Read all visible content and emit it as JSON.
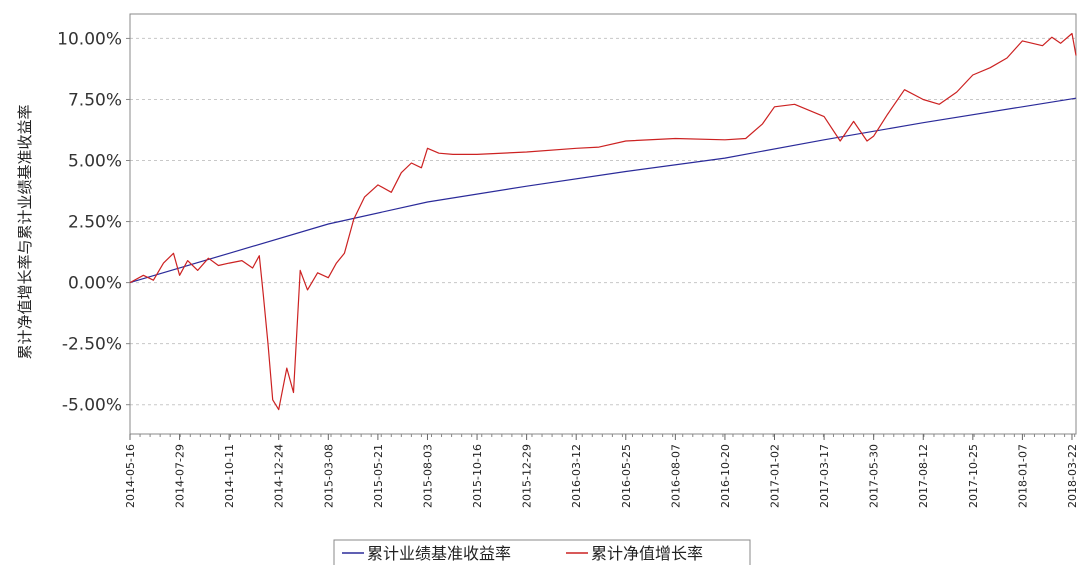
{
  "chart_data": {
    "type": "line",
    "title": "",
    "xlabel": "",
    "ylabel": "累计净值增长率与累计业绩基准收益率",
    "x_ticks": [
      "2014-05-16",
      "2014-07-29",
      "2014-10-11",
      "2014-12-24",
      "2015-03-08",
      "2015-05-21",
      "2015-08-03",
      "2015-10-16",
      "2015-12-29",
      "2016-03-12",
      "2016-05-25",
      "2016-08-07",
      "2016-10-20",
      "2017-01-02",
      "2017-03-17",
      "2017-05-30",
      "2017-08-12",
      "2017-10-25",
      "2018-01-07",
      "2018-03-22"
    ],
    "y_ticks": [
      "-5.00%",
      "-2.50%",
      "0.00%",
      "2.50%",
      "5.00%",
      "7.50%",
      "10.00%"
    ],
    "ylim": [
      -6.2,
      11.0
    ],
    "x_range": [
      "2014-05-16",
      "2018-03-28"
    ],
    "grid": true,
    "legend_position": "bottom-center",
    "series": [
      {
        "name": "累计业绩基准收益率",
        "color": "#2b2b9a",
        "x": [
          "2014-05-16",
          "2014-10-11",
          "2015-03-08",
          "2015-08-03",
          "2015-12-29",
          "2016-05-25",
          "2016-10-20",
          "2017-03-17",
          "2017-08-12",
          "2018-01-07",
          "2018-03-28"
        ],
        "values": [
          0.0,
          1.2,
          2.4,
          3.3,
          3.95,
          4.55,
          5.1,
          5.85,
          6.55,
          7.2,
          7.55
        ]
      },
      {
        "name": "累计净值增长率",
        "color": "#cc2222",
        "x": [
          "2014-05-16",
          "2014-06-05",
          "2014-06-20",
          "2014-07-05",
          "2014-07-20",
          "2014-07-29",
          "2014-08-10",
          "2014-08-25",
          "2014-09-10",
          "2014-09-25",
          "2014-10-11",
          "2014-10-30",
          "2014-11-15",
          "2014-11-25",
          "2014-12-01",
          "2014-12-08",
          "2014-12-15",
          "2014-12-24",
          "2015-01-05",
          "2015-01-15",
          "2015-01-25",
          "2015-02-05",
          "2015-02-20",
          "2015-03-08",
          "2015-03-20",
          "2015-04-01",
          "2015-04-15",
          "2015-05-01",
          "2015-05-21",
          "2015-06-10",
          "2015-06-25",
          "2015-07-10",
          "2015-07-25",
          "2015-08-03",
          "2015-08-20",
          "2015-09-10",
          "2015-10-16",
          "2015-12-29",
          "2016-03-12",
          "2016-04-15",
          "2016-05-25",
          "2016-08-07",
          "2016-10-20",
          "2016-11-20",
          "2016-12-15",
          "2017-01-02",
          "2017-02-01",
          "2017-03-17",
          "2017-04-10",
          "2017-04-30",
          "2017-05-20",
          "2017-05-30",
          "2017-06-20",
          "2017-07-15",
          "2017-08-12",
          "2017-09-05",
          "2017-10-01",
          "2017-10-25",
          "2017-11-20",
          "2017-12-15",
          "2018-01-07",
          "2018-02-06",
          "2018-02-20",
          "2018-03-05",
          "2018-03-22",
          "2018-03-28"
        ],
        "values": [
          0.0,
          0.3,
          0.1,
          0.8,
          1.2,
          0.3,
          0.9,
          0.5,
          1.0,
          0.7,
          0.8,
          0.9,
          0.6,
          1.1,
          -0.5,
          -2.5,
          -4.8,
          -5.2,
          -3.5,
          -4.5,
          0.5,
          -0.3,
          0.4,
          0.2,
          0.8,
          1.2,
          2.6,
          3.5,
          4.0,
          3.7,
          4.5,
          4.9,
          4.7,
          5.5,
          5.3,
          5.25,
          5.25,
          5.35,
          5.5,
          5.55,
          5.8,
          5.9,
          5.85,
          5.9,
          6.5,
          7.2,
          7.3,
          6.8,
          5.8,
          6.6,
          5.8,
          6.0,
          6.9,
          7.9,
          7.5,
          7.3,
          7.8,
          8.5,
          8.8,
          9.2,
          9.9,
          9.7,
          10.05,
          9.8,
          10.2,
          9.3
        ]
      }
    ]
  }
}
